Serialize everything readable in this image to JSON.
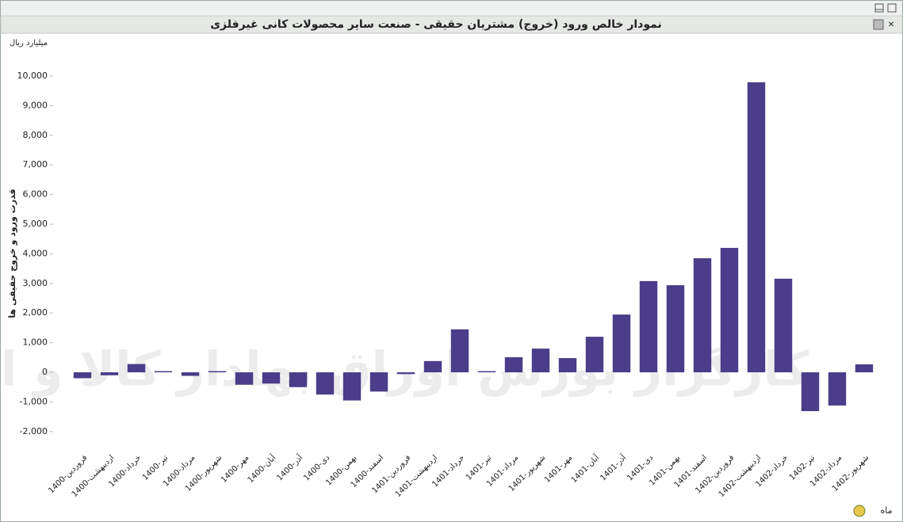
{
  "chart_data": {
    "type": "bar",
    "title": "نمودار خالص ورود (خروج) مشتریان حقیقی - صنعت سایر محصولات کانی غیرفلزی",
    "unit_label": "میلیارد ریال",
    "y_axis_title": "قدرت ورود و خروج حقیقی ها",
    "x_axis_title": "ماه",
    "watermark": "کارگزار بورس اوراق بهادار کالا و انرژی",
    "categories": [
      "1400-فروردین",
      "1400-اردیبهشت",
      "1400-خرداد",
      "1400-تیر",
      "1400-مرداد",
      "1400-شهریور",
      "1400-مهر",
      "1400-آبان",
      "1400-آذر",
      "1400-دی",
      "1400-بهمن",
      "1400-اسفند",
      "1401-فروردین",
      "1401-اردیبهشت",
      "1401-خرداد",
      "1401-تیر",
      "1401-مرداد",
      "1401-شهریور",
      "1401-مهر",
      "1401-آبان",
      "1401-آذر",
      "1401-دی",
      "1401-بهمن",
      "1401-اسفند",
      "1402-فروردین",
      "1402-اردیبهشت",
      "1402-خرداد",
      "1402-تیر",
      "1402-مرداد",
      "1402-شهریور"
    ],
    "values": [
      -200,
      -100,
      280,
      40,
      -120,
      40,
      -420,
      -380,
      -500,
      -750,
      -950,
      -650,
      -60,
      380,
      1450,
      40,
      510,
      800,
      480,
      1200,
      1950,
      3080,
      2940,
      3850,
      4200,
      9790,
      3160,
      -1310,
      -1120,
      270
    ],
    "color": "#4b3d8a",
    "ylim": [
      -2400,
      11000
    ],
    "yticks": [
      {
        "value": -2000,
        "label": "-2,000"
      },
      {
        "value": -1000,
        "label": "-1,000"
      },
      0,
      {
        "value": 1000,
        "label": "1,000"
      },
      {
        "value": 2000,
        "label": "2,000"
      },
      {
        "value": 3000,
        "label": "3,000"
      },
      {
        "value": 4000,
        "label": "4,000"
      },
      {
        "value": 5000,
        "label": "5,000"
      },
      {
        "value": 6000,
        "label": "6,000"
      },
      {
        "value": 7000,
        "label": "7,000"
      },
      {
        "value": 8000,
        "label": "8,000"
      },
      {
        "value": 9000,
        "label": "9,000"
      },
      {
        "value": 10000,
        "label": "10,000"
      }
    ],
    "grid": false
  }
}
